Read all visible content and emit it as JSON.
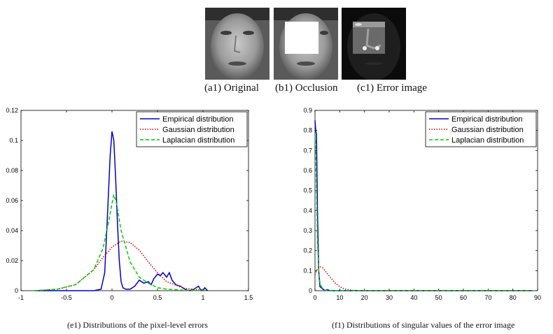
{
  "images": [
    {
      "caption": "(a1) Original",
      "icon": "face-photo-icon"
    },
    {
      "caption": "(b1) Occlusion",
      "icon": "occluded-face-photo-icon"
    },
    {
      "caption": "(c1) Error image",
      "icon": "error-image-icon"
    }
  ],
  "colors": {
    "empirical": "#0000cc",
    "gaussian": "#cc0000",
    "laplacian": "#00cc00"
  },
  "chart_data": [
    {
      "type": "line",
      "title": "",
      "caption": "(e1) Distributions of the pixel-level errors",
      "xlabel": "",
      "ylabel": "",
      "xlim": [
        -1,
        1.5
      ],
      "ylim": [
        0,
        0.12
      ],
      "xticks": [
        "-1",
        "-0.5",
        "0",
        "0.5",
        "1",
        "1.5"
      ],
      "yticks": [
        "0",
        "0.02",
        "0.04",
        "0.06",
        "0.08",
        "0.1",
        "0.12"
      ],
      "xtick_values": [
        -1,
        -0.5,
        0,
        0.5,
        1,
        1.5
      ],
      "ytick_values": [
        0,
        0.02,
        0.04,
        0.06,
        0.08,
        0.1,
        0.12
      ],
      "legend_position": "top-right",
      "grid": false,
      "series": [
        {
          "name": "Empirical distribution",
          "style": "solid",
          "x": [
            -0.85,
            -0.4,
            -0.2,
            -0.12,
            -0.08,
            -0.05,
            -0.02,
            0,
            0.02,
            0.04,
            0.06,
            0.08,
            0.1,
            0.12,
            0.15,
            0.2,
            0.25,
            0.3,
            0.35,
            0.4,
            0.43,
            0.46,
            0.5,
            0.53,
            0.56,
            0.6,
            0.63,
            0.66,
            0.7,
            0.75,
            0.8,
            0.85,
            0.9,
            0.95,
            0.97,
            1.0,
            1.02,
            1.05
          ],
          "y": [
            0,
            0,
            0,
            0.001,
            0.012,
            0.05,
            0.09,
            0.106,
            0.1,
            0.075,
            0.045,
            0.02,
            0.006,
            0.002,
            0.001,
            0.001,
            0.003,
            0.007,
            0.005,
            0.006,
            0.004,
            0.008,
            0.011,
            0.01,
            0.012,
            0.009,
            0.012,
            0.007,
            0.004,
            0.003,
            0.001,
            0,
            0.001,
            0.003,
            0.001,
            0,
            0.002,
            0
          ]
        },
        {
          "name": "Gaussian distribution",
          "style": "dotted",
          "x": [
            -0.85,
            -0.6,
            -0.4,
            -0.2,
            -0.1,
            0,
            0.1,
            0.2,
            0.3,
            0.4,
            0.5,
            0.6,
            0.8,
            1.0,
            1.05
          ],
          "y": [
            0,
            0.001,
            0.004,
            0.014,
            0.022,
            0.029,
            0.033,
            0.032,
            0.027,
            0.019,
            0.012,
            0.006,
            0.0015,
            0.0003,
            0
          ]
        },
        {
          "name": "Laplacian distribution",
          "style": "dashed",
          "x": [
            -0.85,
            -0.6,
            -0.4,
            -0.2,
            -0.1,
            -0.05,
            0,
            0.02,
            0.05,
            0.1,
            0.2,
            0.3,
            0.4,
            0.5,
            0.6,
            0.8,
            1.05
          ],
          "y": [
            0,
            0.001,
            0.004,
            0.014,
            0.028,
            0.042,
            0.058,
            0.064,
            0.058,
            0.04,
            0.019,
            0.009,
            0.005,
            0.002,
            0.001,
            0.0003,
            0
          ]
        }
      ]
    },
    {
      "type": "line",
      "title": "",
      "caption": "(f1) Distributions of singular values of the error image",
      "xlabel": "",
      "ylabel": "",
      "xlim": [
        0,
        90
      ],
      "ylim": [
        0,
        0.9
      ],
      "xticks": [
        "0",
        "10",
        "20",
        "30",
        "40",
        "50",
        "60",
        "70",
        "80",
        "90"
      ],
      "yticks": [
        "0",
        "0.1",
        "0.2",
        "0.3",
        "0.4",
        "0.5",
        "0.6",
        "0.7",
        "0.8",
        "0.9"
      ],
      "xtick_values": [
        0,
        10,
        20,
        30,
        40,
        50,
        60,
        70,
        80,
        90
      ],
      "ytick_values": [
        0,
        0.1,
        0.2,
        0.3,
        0.4,
        0.5,
        0.6,
        0.7,
        0.8,
        0.9
      ],
      "legend_position": "top-right",
      "grid": false,
      "series": [
        {
          "name": "Empirical distribution",
          "style": "solid",
          "x": [
            0,
            0.3,
            0.6,
            1,
            1.5,
            2,
            3,
            4,
            5,
            6,
            8,
            88
          ],
          "y": [
            0.85,
            0.8,
            0.78,
            0.4,
            0.1,
            0.02,
            0.01,
            0,
            0.005,
            0,
            0,
            0
          ]
        },
        {
          "name": "Gaussian distribution",
          "style": "dotted",
          "x": [
            0,
            1,
            2,
            3,
            4,
            6,
            8,
            10,
            12,
            15,
            20,
            88
          ],
          "y": [
            0.08,
            0.11,
            0.12,
            0.115,
            0.1,
            0.07,
            0.04,
            0.02,
            0.008,
            0.002,
            0,
            0
          ]
        },
        {
          "name": "Laplacian distribution",
          "style": "dashed",
          "x": [
            0,
            0.3,
            0.6,
            1,
            1.5,
            2,
            3,
            4,
            5,
            88
          ],
          "y": [
            0.78,
            0.72,
            0.5,
            0.25,
            0.1,
            0.04,
            0.01,
            0.003,
            0,
            0
          ]
        }
      ]
    }
  ]
}
